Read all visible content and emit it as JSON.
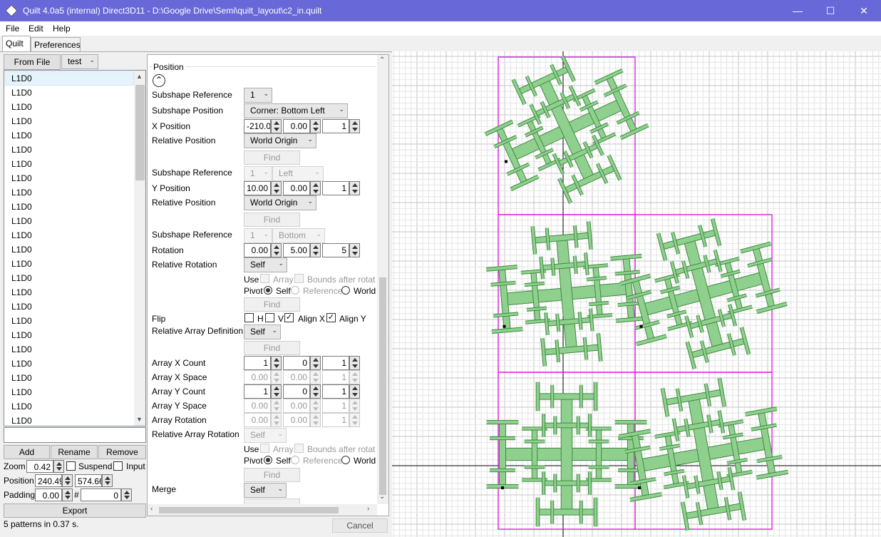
{
  "window": {
    "title": "Quilt 4.0a5 (internal) Direct3D11 - D:\\Google Drive\\Semi\\quilt_layout\\c2_in.quilt",
    "minimize_glyph": "—",
    "maximize_glyph": "☐",
    "close_glyph": "✕"
  },
  "menu": {
    "file": "File",
    "edit": "Edit",
    "help": "Help"
  },
  "tabs": {
    "quilt": "Quilt",
    "preferences": "Preferences"
  },
  "left": {
    "from_file": "From File",
    "pattern_select": "test",
    "list_items": [
      "L1D0",
      "L1D0",
      "L1D0",
      "L1D0",
      "L1D0",
      "L1D0",
      "L1D0",
      "L1D0",
      "L1D0",
      "L1D0",
      "L1D0",
      "L1D0",
      "L1D0",
      "L1D0",
      "L1D0",
      "L1D0",
      "L1D0",
      "L1D0",
      "L1D0",
      "L1D0",
      "L1D0",
      "L1D0",
      "L1D0",
      "L1D0",
      "L1D0"
    ],
    "add": "Add",
    "rename": "Rename",
    "remove": "Remove",
    "zoom_label": "Zoom",
    "zoom_value": "0.42",
    "suspend": "Suspend",
    "input": "Input",
    "position_label": "Position",
    "position_x": "240.49",
    "position_y": "574.66",
    "padding_label": "Padding",
    "padding_value": "0.00",
    "hash": "#",
    "hash_value": "0",
    "export": "Export",
    "status": "5 patterns in 0.37 s."
  },
  "settings": {
    "section": "Position",
    "subshape_reference": "Subshape Reference",
    "subshape_position": "Subshape Position",
    "x_position": "X Position",
    "relative_position": "Relative Position",
    "y_position": "Y Position",
    "rotation": "Rotation",
    "relative_rotation": "Relative Rotation",
    "flip": "Flip",
    "relative_array_definition": "Relative Array Definition",
    "array_x_count": "Array X Count",
    "array_x_space": "Array X Space",
    "array_y_count": "Array Y Count",
    "array_y_space": "Array Y Space",
    "array_rotation": "Array Rotation",
    "relative_array_rotation": "Relative Array Rotation",
    "merge": "Merge",
    "find": "Find",
    "use": "Use",
    "array": "Array",
    "bounds_after_rotation": "Bounds after rotat",
    "pivot": "Pivot",
    "self": "Self",
    "reference": "Reference",
    "world": "World",
    "flip_h": "H",
    "flip_v": "V",
    "align_x": "Align X",
    "align_y": "Align Y",
    "ref1": "1",
    "corner_bottom_left": "Corner: Bottom Left",
    "world_origin": "World Origin",
    "left": "Left",
    "bottom": "Bottom",
    "x_vals": [
      "-210.00",
      "0.00",
      "1"
    ],
    "y_vals": [
      "10.00",
      "0.00",
      "1"
    ],
    "rot_vals": [
      "0.00",
      "5.00",
      "5"
    ],
    "ax_count": [
      "1",
      "0",
      "1"
    ],
    "ax_space": [
      "0.00",
      "0.00",
      "1"
    ],
    "ay_count": [
      "1",
      "0",
      "1"
    ],
    "ay_space": [
      "0.00",
      "0.00",
      "1"
    ],
    "arot": [
      "0.00",
      "0.00",
      "1"
    ],
    "cancel": "Cancel"
  },
  "colors": {
    "accent": "#6868d8",
    "shape_fill": "#8fd08f",
    "shape_stroke": "#3f8a3f",
    "bounds": "#e000e0",
    "grid": "#e4e4e4",
    "grid_major": "#c6c6c6",
    "axis": "#000000"
  }
}
